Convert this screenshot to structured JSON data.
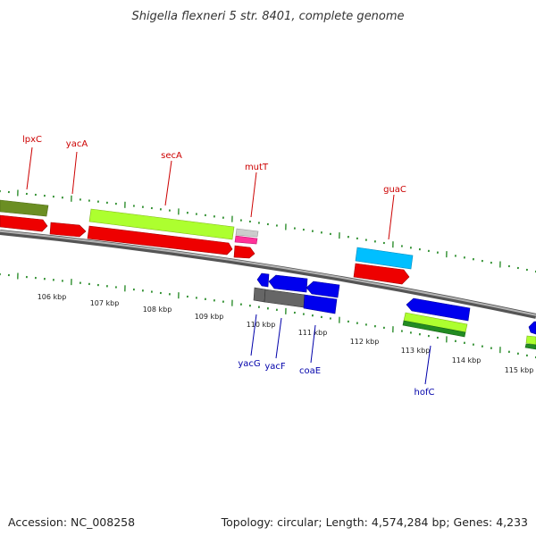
{
  "title": "Shigella flexneri 5 str. 8401, complete genome",
  "footer": {
    "accession": "Accession: NC_008258",
    "summary": "Topology: circular; Length: 4,574,284 bp; Genes: 4,233"
  },
  "colors": {
    "top_label": "#cc0000",
    "bottom_label": "#0000aa",
    "backbone": "#888888",
    "ticks": "#2f8f2f"
  },
  "kbp_labels": [
    "106 kbp",
    "107 kbp",
    "108 kbp",
    "109 kbp",
    "110 kbp",
    "111 kbp",
    "112 kbp",
    "113 kbp",
    "114 kbp",
    "115 kbp"
  ],
  "top_genes": [
    "lpxC",
    "yacA",
    "secA",
    "mutT",
    "guaC"
  ],
  "bottom_genes": [
    "yacG",
    "yacF",
    "coaE",
    "hofC"
  ]
}
